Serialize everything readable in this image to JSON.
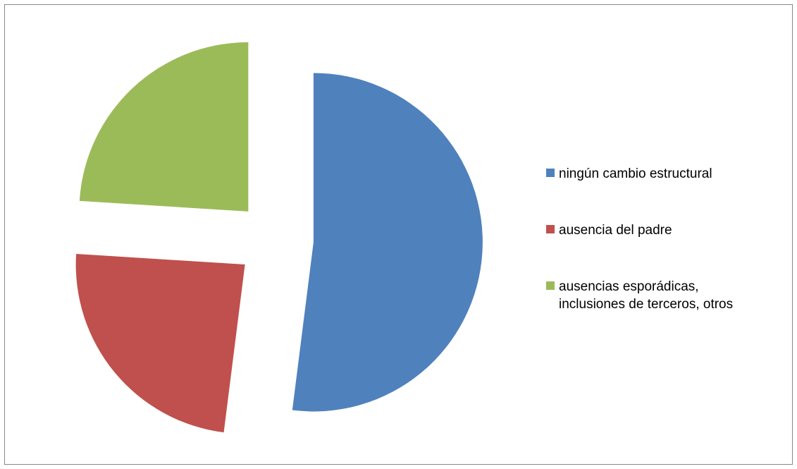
{
  "chart_data": {
    "type": "pie",
    "categories": [
      "ningún cambio estructural",
      "ausencia del padre",
      "ausencias esporádicas, inclusiones de terceros, otros"
    ],
    "values": [
      52,
      24,
      24
    ],
    "colors": [
      "#4f81bd",
      "#c0504d",
      "#9bbb59"
    ],
    "exploded": true,
    "legend": "right"
  }
}
